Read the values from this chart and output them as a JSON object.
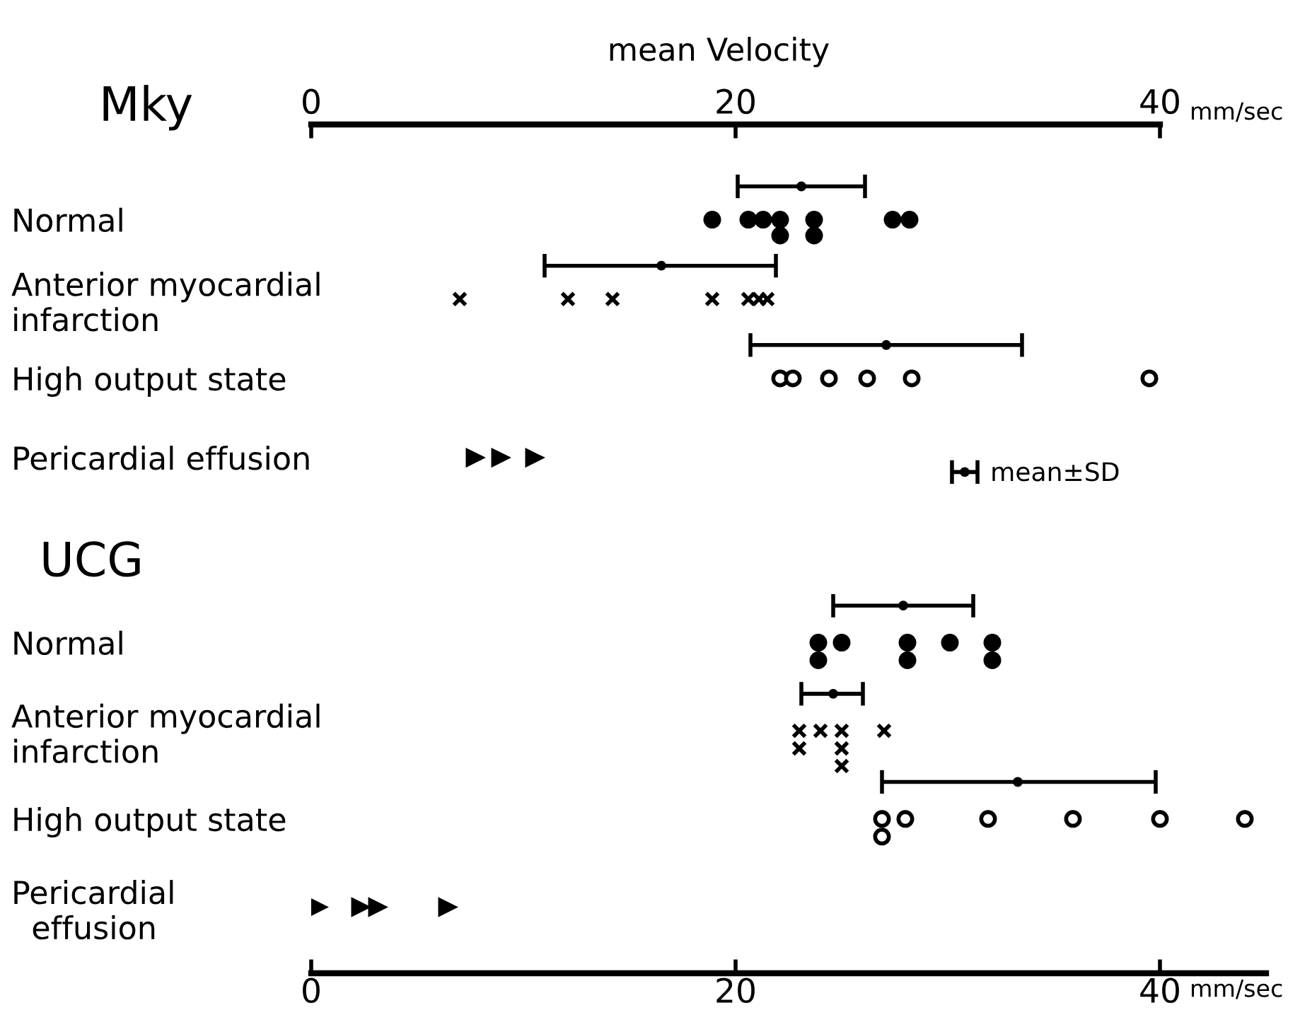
{
  "chart_data": [
    {
      "type": "scatter",
      "orientation": "horizontal",
      "title": "Mky",
      "x2label": "mean Velocity",
      "annotations": [
        "mm/sec"
      ],
      "categories": [
        "Normal",
        "Anterior myocardial\ninfarction",
        "High output state",
        "Pericardial effusion"
      ],
      "x2lim": [
        0,
        40
      ],
      "x2ticks": [
        0,
        20,
        40
      ],
      "legend": "bottom right",
      "grid": false,
      "series": [
        {
          "axis": "x2",
          "x": [
            "Normal",
            "Normal",
            "Normal",
            "Normal",
            "Normal",
            "Normal",
            "Normal",
            "Normal",
            "Normal"
          ],
          "values": [
            18.9,
            20.6,
            21.3,
            22.1,
            22.1,
            23.7,
            23.7,
            27.4,
            28.2
          ],
          "marker": "circle",
          "color": "#000000"
        },
        {
          "axis": "x2",
          "x": [
            "Anterior myocardial\ninfarction",
            "Anterior myocardial\ninfarction",
            "Anterior myocardial\ninfarction",
            "Anterior myocardial\ninfarction",
            "Anterior myocardial\ninfarction",
            "Anterior myocardial\ninfarction",
            "Anterior myocardial\ninfarction"
          ],
          "values": [
            7.0,
            12.1,
            14.2,
            18.9,
            20.6,
            21.1,
            21.5
          ],
          "marker": "cross",
          "color": "#000000"
        },
        {
          "axis": "x2",
          "x": [
            "High output state",
            "High output state",
            "High output state",
            "High output state",
            "High output state",
            "High output state"
          ],
          "values": [
            22.1,
            22.7,
            24.4,
            26.2,
            28.3,
            39.5
          ],
          "marker": "circle",
          "color": "#ffffff"
        },
        {
          "axis": "x2",
          "x": [
            "Pericardial effusion",
            "Pericardial effusion",
            "Pericardial effusion"
          ],
          "values": [
            7.7,
            8.9,
            10.5
          ],
          "marker": "triangle",
          "color": "#000000"
        },
        {
          "axis": "x2",
          "name": "mean±SD",
          "x": [
            "Normal",
            "Anterior myocardial\ninfarction",
            "High output state"
          ],
          "values": [
            23.1,
            16.5,
            27.1
          ],
          "errors": [
            [
              20.1,
              26.1
            ],
            [
              11.0,
              21.9
            ],
            [
              20.7,
              33.5
            ]
          ],
          "marker": "circle",
          "color": "#000000"
        }
      ]
    },
    {
      "type": "scatter",
      "orientation": "horizontal",
      "title": "UCG",
      "annotations": [
        "mm/sec"
      ],
      "categories": [
        "Normal",
        "Anterior myocardial\ninfarction",
        "High output state",
        "Pericardial\n  effusion"
      ],
      "xlim": [
        0,
        45
      ],
      "xticks": [
        0,
        20,
        40
      ],
      "grid": false,
      "series": [
        {
          "x": [
            "Normal",
            "Normal",
            "Normal",
            "Normal",
            "Normal",
            "Normal",
            "Normal",
            "Normal"
          ],
          "values": [
            23.9,
            23.9,
            25.0,
            28.1,
            28.1,
            30.1,
            32.1,
            32.1
          ],
          "marker": "circle",
          "color": "#000000"
        },
        {
          "x": [
            "Anterior myocardial\ninfarction",
            "Anterior myocardial\ninfarction",
            "Anterior myocardial\ninfarction",
            "Anterior myocardial\ninfarction",
            "Anterior myocardial\ninfarction",
            "Anterior myocardial\ninfarction",
            "Anterior myocardial\ninfarction"
          ],
          "values": [
            23.0,
            23.0,
            24.0,
            25.0,
            25.0,
            25.0,
            27.0
          ],
          "marker": "cross",
          "color": "#000000"
        },
        {
          "x": [
            "High output state",
            "High output state",
            "High output state",
            "High output state",
            "High output state",
            "High output state",
            "High output state"
          ],
          "values": [
            26.9,
            26.9,
            28.0,
            31.9,
            35.9,
            40.0,
            44.0
          ],
          "marker": "circle",
          "color": "#ffffff"
        },
        {
          "x": [
            "Pericardial\n  effusion",
            "Pericardial\n  effusion",
            "Pericardial\n  effusion",
            "Pericardial\n  effusion"
          ],
          "values": [
            0.3,
            2.3,
            3.1,
            6.4
          ],
          "marker": "triangle",
          "color": "#000000"
        },
        {
          "x": [
            "Normal",
            "Anterior myocardial\ninfarction",
            "High output state"
          ],
          "values": [
            27.9,
            24.6,
            33.3
          ],
          "errors": [
            [
              24.6,
              31.2
            ],
            [
              23.1,
              26.0
            ],
            [
              26.9,
              39.8
            ]
          ],
          "marker": "circle",
          "color": "#000000"
        }
      ]
    }
  ]
}
